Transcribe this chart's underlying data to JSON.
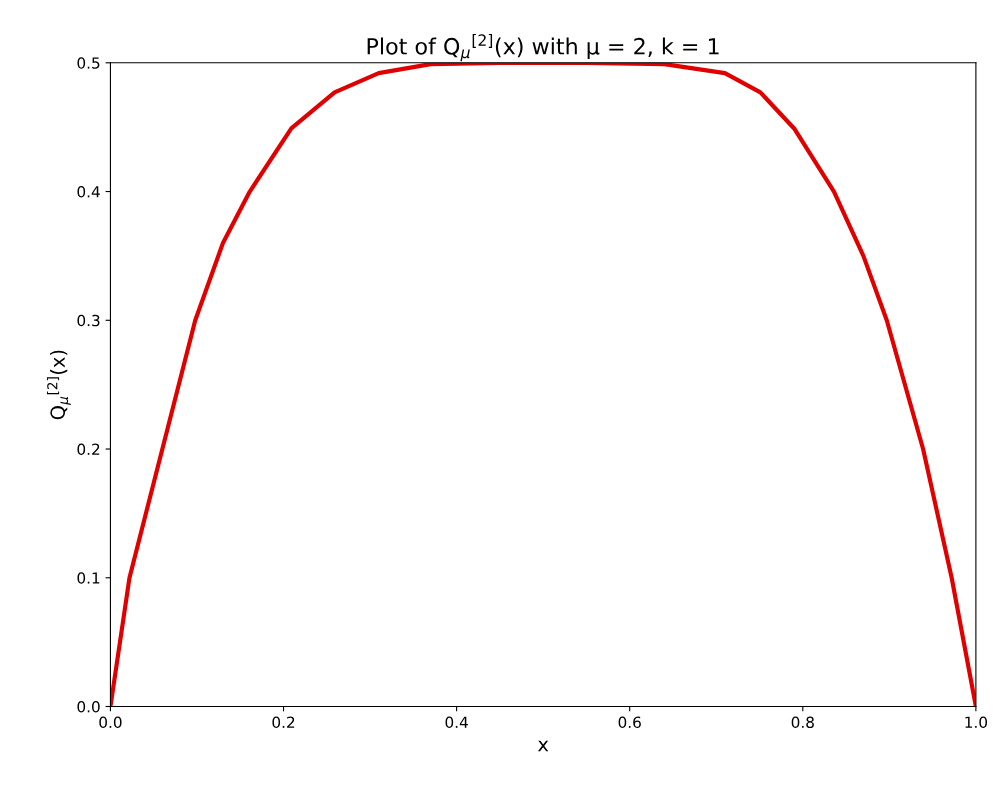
{
  "chart_data": {
    "type": "line",
    "title": "Plot of Q$_{μ}$$^{[2]}$(x) with μ = 2, k = 1",
    "xlabel": "x",
    "ylabel": "Q$_{μ}$$^{[2]}$(x)",
    "x": [
      0,
      0.022,
      0.06,
      0.098,
      0.13,
      0.161,
      0.209,
      0.259,
      0.31,
      0.37,
      0.45,
      0.5,
      0.55,
      0.64,
      0.71,
      0.751,
      0.79,
      0.836,
      0.87,
      0.897,
      0.939,
      0.972,
      1.0
    ],
    "series": [
      {
        "color": "#e00000",
        "values": [
          0,
          0.1,
          0.2,
          0.3,
          0.36,
          0.4,
          0.449,
          0.477,
          0.492,
          0.499,
          0.5,
          0.5,
          0.5,
          0.499,
          0.492,
          0.477,
          0.449,
          0.4,
          0.35,
          0.3,
          0.2,
          0.1,
          0
        ]
      }
    ],
    "xlim": [
      0,
      1
    ],
    "ylim": [
      0,
      0.5
    ],
    "xticks": [
      {
        "value": 0,
        "label": "0.0"
      },
      {
        "value": 0.2,
        "label": "0.2"
      },
      {
        "value": 0.4,
        "label": "0.4"
      },
      {
        "value": 0.6,
        "label": "0.6"
      },
      {
        "value": 0.8,
        "label": "0.8"
      },
      {
        "value": 1,
        "label": "1.0"
      }
    ],
    "yticks": [
      {
        "value": 0,
        "label": "0.0"
      },
      {
        "value": 0.1,
        "label": "0.1"
      },
      {
        "value": 0.2,
        "label": "0.2"
      },
      {
        "value": 0.3,
        "label": "0.3"
      },
      {
        "value": 0.4,
        "label": "0.4"
      },
      {
        "value": 0.5,
        "label": "0.5"
      }
    ],
    "grid": false,
    "marker": "none",
    "line_style": "solid"
  }
}
